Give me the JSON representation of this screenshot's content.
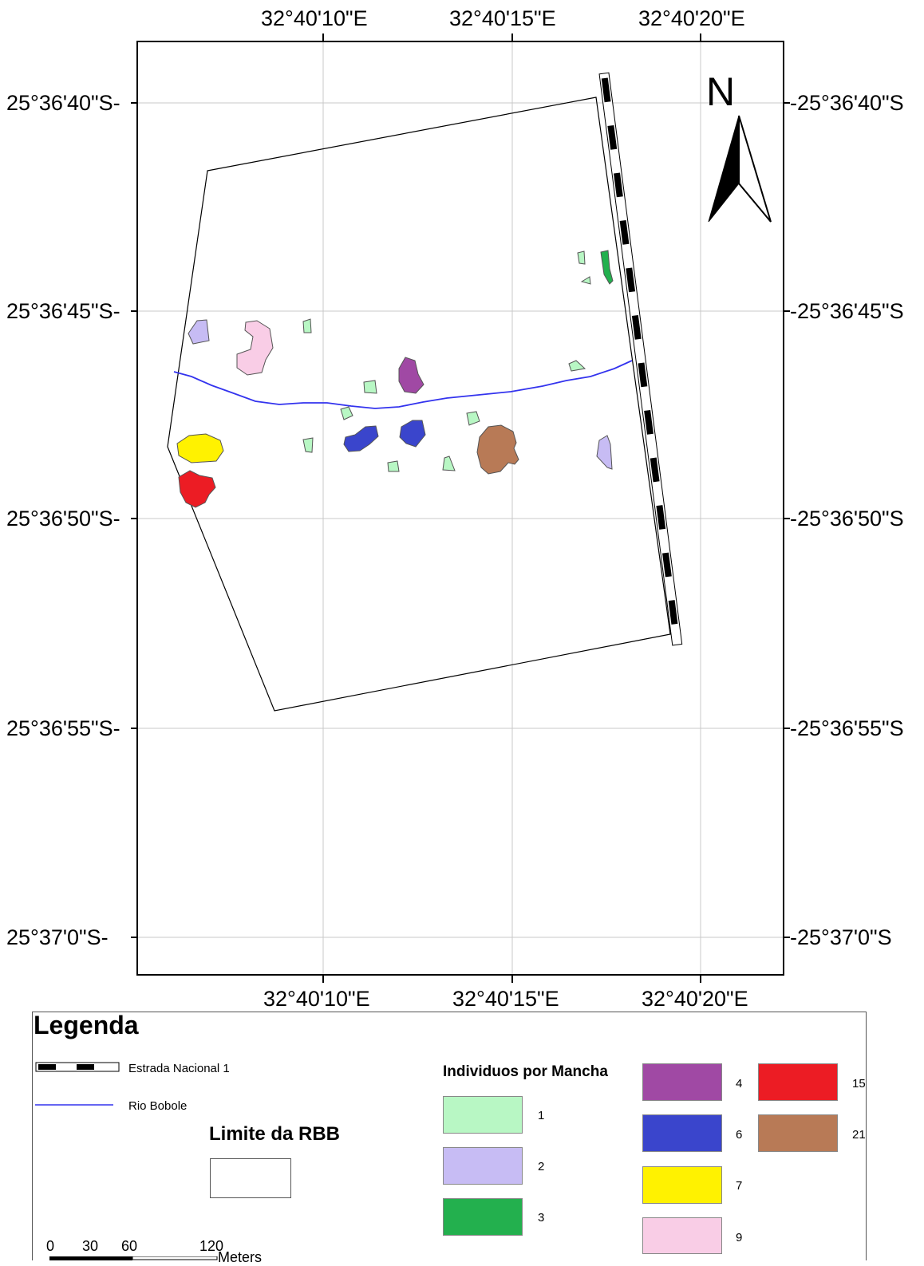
{
  "map": {
    "lon_labels": [
      "32°40'10\"E",
      "32°40'15\"E",
      "32°40'20\"E"
    ],
    "lat_labels_left": [
      "25°36'40\"S-",
      "25°36'45\"S-",
      "25°36'50\"S-",
      "25°36'55\"S-",
      "25°37'0\"S-"
    ],
    "lat_labels_right": [
      "-25°36'40\"S",
      "-25°36'45\"S",
      "-25°36'50\"S",
      "-25°36'55\"S",
      "-25°37'0\"S"
    ],
    "north_label": "N",
    "colors": {
      "boundary": "#000000",
      "river": "#3333ee",
      "grid": "#c8c8c8"
    }
  },
  "legend": {
    "title": "Legenda",
    "road_label": "Estrada Nacional 1",
    "river_label": "Rio Bobole",
    "limit_label": "Limite da RBB",
    "individuals_title": "Individuos por Mancha",
    "classes": [
      {
        "value": "1",
        "color": "#b8f7c4"
      },
      {
        "value": "2",
        "color": "#c7bcf4"
      },
      {
        "value": "3",
        "color": "#23b04e"
      },
      {
        "value": "4",
        "color": "#a049a4"
      },
      {
        "value": "6",
        "color": "#3a45cc"
      },
      {
        "value": "7",
        "color": "#fff200"
      },
      {
        "value": "9",
        "color": "#f9cde6"
      },
      {
        "value": "15",
        "color": "#ec1c24"
      },
      {
        "value": "21",
        "color": "#b87a56"
      }
    ],
    "scale_ticks": [
      "0",
      "30",
      "60",
      "120"
    ],
    "scale_unit": "Meters"
  }
}
